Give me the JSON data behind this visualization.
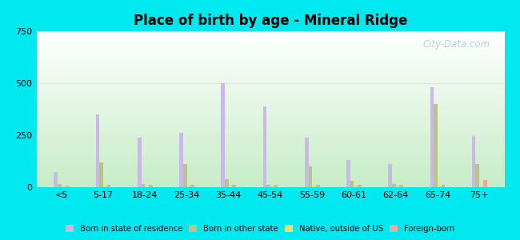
{
  "title": "Place of birth by age - Mineral Ridge",
  "categories": [
    "<5",
    "5-17",
    "18-24",
    "25-34",
    "35-44",
    "45-54",
    "55-59",
    "60-61",
    "62-64",
    "65-74",
    "75+"
  ],
  "series": {
    "Born in state of residence": [
      75,
      350,
      240,
      260,
      500,
      390,
      240,
      130,
      110,
      480,
      248
    ],
    "Born in other state": [
      15,
      120,
      15,
      110,
      40,
      10,
      100,
      30,
      15,
      400,
      110
    ],
    "Native, outside of US": [
      8,
      8,
      8,
      8,
      12,
      8,
      8,
      12,
      8,
      8,
      8
    ],
    "Foreign-born": [
      8,
      12,
      12,
      12,
      12,
      12,
      12,
      12,
      12,
      12,
      35
    ]
  },
  "colors": {
    "Born in state of residence": "#c9b8e8",
    "Born in other state": "#b8c48a",
    "Native, outside of US": "#f0e060",
    "Foreign-born": "#f0a898"
  },
  "ylim": [
    0,
    750
  ],
  "yticks": [
    0,
    250,
    500,
    750
  ],
  "bar_width": 0.09,
  "background_top": "#ffffff",
  "background_bottom": "#c8ecc8",
  "figure_bg": "#00e8f0",
  "grid_color": "#d8eed8",
  "watermark": "City-Data.com"
}
